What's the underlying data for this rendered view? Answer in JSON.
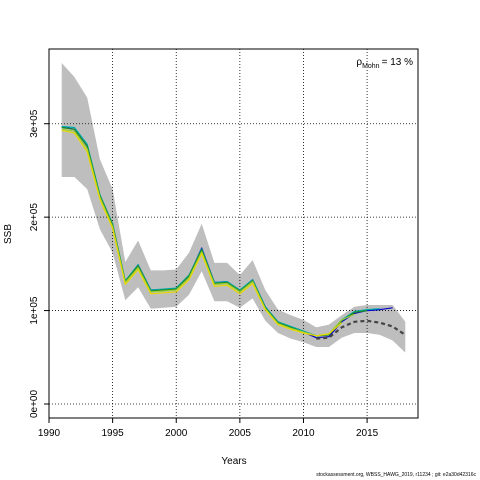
{
  "chart_data": {
    "type": "line",
    "xlabel": "Years",
    "ylabel": "SSB",
    "xlim": [
      1990,
      2019
    ],
    "ylim": [
      -15000,
      380000
    ],
    "x_ticks": [
      1990,
      1995,
      2000,
      2005,
      2010,
      2015
    ],
    "y_ticks": [
      0,
      100000,
      200000,
      300000
    ],
    "y_tick_labels": [
      "0e+00",
      "1e+05",
      "2e+05",
      "3e+05"
    ],
    "grid": true,
    "legend": {
      "rho_symbol": "ρ",
      "rho_subscript": "Mohn",
      "rho_value": "= 13 %"
    },
    "confidence_band": {
      "x": [
        1991,
        1992,
        1993,
        1994,
        1995,
        1996,
        1997,
        1998,
        1999,
        2000,
        2001,
        2002,
        2003,
        2004,
        2005,
        2006,
        2007,
        2008,
        2009,
        2010,
        2011,
        2012,
        2013,
        2014,
        2015,
        2016,
        2017,
        2018
      ],
      "upper": [
        365000,
        350000,
        328000,
        262000,
        230000,
        152000,
        175000,
        143000,
        143000,
        144000,
        162000,
        193000,
        151000,
        151000,
        138000,
        154000,
        122000,
        101000,
        95000,
        90000,
        82000,
        85000,
        95000,
        104000,
        106000,
        106000,
        106000,
        88000
      ],
      "lower": [
        243000,
        243000,
        230000,
        187000,
        162000,
        111000,
        125000,
        102000,
        103000,
        104000,
        117000,
        142000,
        110000,
        110000,
        103000,
        113000,
        89000,
        76000,
        70000,
        66000,
        61000,
        61000,
        71000,
        76000,
        76000,
        74000,
        68000,
        55000
      ]
    },
    "series": [
      {
        "color": "#0000cc",
        "x": [
          1991,
          1992,
          1993,
          1994,
          1995,
          1996,
          1997,
          1998,
          1999,
          2000,
          2001,
          2002,
          2003,
          2004,
          2005,
          2006,
          2007,
          2008,
          2009,
          2010,
          2011,
          2012,
          2013,
          2014,
          2015,
          2016,
          2017
        ],
        "values": [
          297000,
          294000,
          276000,
          223000,
          192000,
          131000,
          149000,
          122000,
          122000,
          123000,
          137000,
          167000,
          130000,
          131000,
          121000,
          133000,
          104000,
          87000,
          82000,
          77000,
          71000,
          72000,
          88000,
          97000,
          100000,
          101000,
          103000
        ]
      },
      {
        "color": "#00aaaa",
        "x": [
          1991,
          1992,
          1993,
          1994,
          1995,
          1996,
          1997,
          1998,
          1999,
          2000,
          2001,
          2002,
          2003,
          2004,
          2005,
          2006,
          2007,
          2008,
          2009,
          2010,
          2011,
          2012,
          2013,
          2014,
          2015,
          2016
        ],
        "values": [
          297000,
          296000,
          278000,
          224000,
          193000,
          132000,
          149000,
          122000,
          123000,
          124000,
          138000,
          166000,
          130000,
          131000,
          122000,
          133000,
          104000,
          88000,
          83000,
          78000,
          73000,
          74000,
          90000,
          99000,
          101000,
          102000
        ]
      },
      {
        "color": "#228b22",
        "x": [
          1991,
          1992,
          1993,
          1994,
          1995,
          1996,
          1997,
          1998,
          1999,
          2000,
          2001,
          2002,
          2003,
          2004,
          2005,
          2006,
          2007,
          2008,
          2009,
          2010,
          2011,
          2012,
          2013,
          2014,
          2015
        ],
        "values": [
          296000,
          294000,
          276000,
          223000,
          192000,
          131000,
          148000,
          121000,
          122000,
          123000,
          137000,
          165000,
          129000,
          130000,
          121000,
          132000,
          103000,
          87000,
          82000,
          77000,
          73000,
          74000,
          89000,
          98000,
          100000
        ]
      },
      {
        "color": "#9acd32",
        "x": [
          1991,
          1992,
          1993,
          1994,
          1995,
          1996,
          1997,
          1998,
          1999,
          2000,
          2001,
          2002,
          2003,
          2004,
          2005,
          2006,
          2007,
          2008,
          2009,
          2010,
          2011,
          2012,
          2013,
          2014
        ],
        "values": [
          294000,
          292000,
          273000,
          221000,
          190000,
          130000,
          146000,
          120000,
          121000,
          122000,
          135000,
          163000,
          128000,
          129000,
          120000,
          131000,
          102000,
          86000,
          81000,
          77000,
          73000,
          75000,
          90000,
          96000
        ]
      },
      {
        "color": "#e8d800",
        "x": [
          1991,
          1992,
          1993,
          1994,
          1995,
          1996,
          1997,
          1998,
          1999,
          2000,
          2001,
          2002,
          2003,
          2004,
          2005,
          2006,
          2007,
          2008,
          2009,
          2010,
          2011,
          2012,
          2013
        ],
        "values": [
          293000,
          290000,
          270000,
          219000,
          188000,
          128000,
          144000,
          118000,
          119000,
          120000,
          133000,
          161000,
          126000,
          127000,
          118000,
          129000,
          101000,
          85000,
          80000,
          76000,
          73000,
          75000,
          87000
        ]
      },
      {
        "color": "#444444",
        "dashed": true,
        "x": [
          2011,
          2012,
          2013,
          2014,
          2015,
          2016,
          2017,
          2018
        ],
        "values": [
          70000,
          71000,
          82000,
          88000,
          89000,
          87000,
          83000,
          74000
        ]
      }
    ]
  },
  "footer": "stockassessment.org, WBSS_HAWG_2019, r11234 ; git: e2a30d42316c"
}
